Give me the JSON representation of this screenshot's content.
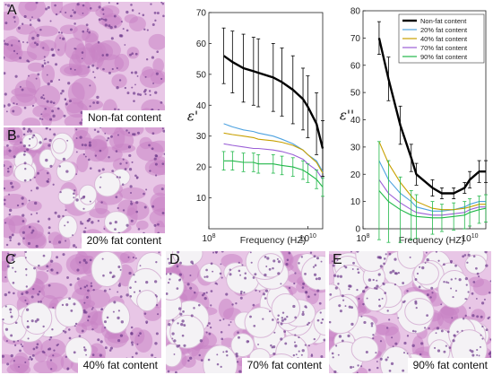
{
  "panels": {
    "A": {
      "letter": "A",
      "caption": "Non-fat content"
    },
    "B": {
      "letter": "B",
      "caption": "20% fat content"
    },
    "C": {
      "letter": "C",
      "caption": "40% fat content"
    },
    "D": {
      "letter": "D",
      "caption": "70% fat content"
    },
    "E": {
      "letter": "E",
      "caption": "90% fat content"
    }
  },
  "colors": {
    "tissue": "#c983c4",
    "tissue_light": "#e8c6e6",
    "fat": "#f4f2f5",
    "nuclei": "#6e3a8c"
  },
  "chart_data": [
    {
      "type": "line",
      "ylabel": "ε'",
      "xlabel": "Frequency (HZ)",
      "xscale": "log",
      "xlim": [
        100000000,
        20000000000
      ],
      "ylim": [
        0,
        70
      ],
      "yticks": [
        10,
        20,
        30,
        40,
        50,
        60,
        70
      ],
      "xticks": [
        {
          "label": "10^8",
          "value": 100000000
        },
        {
          "label": "10^10",
          "value": 10000000000
        }
      ],
      "grid": false,
      "x": [
        200000000,
        300000000,
        500000000,
        800000000,
        1000000000,
        2000000000,
        3000000000,
        5000000000,
        8000000000,
        10000000000,
        15000000000,
        20000000000
      ],
      "series": [
        {
          "name": "Non-fat content",
          "color": "#000000",
          "values": [
            56,
            54,
            52,
            51,
            50.5,
            49,
            47.5,
            45,
            42,
            39.5,
            34,
            26
          ],
          "errors": [
            9,
            10,
            11,
            11,
            11,
            11,
            11,
            11,
            10,
            10,
            10,
            9
          ]
        },
        {
          "name": "20% fat content",
          "color": "#4fa3e0",
          "values": [
            34,
            33,
            32,
            31.5,
            31,
            30,
            29,
            27.5,
            25.5,
            24,
            22,
            18.5
          ]
        },
        {
          "name": "40% fat content",
          "color": "#c8a000",
          "values": [
            31,
            30.5,
            30,
            29.5,
            29,
            28.5,
            28,
            27,
            25.5,
            24,
            21.5,
            18
          ]
        },
        {
          "name": "70% fat content",
          "color": "#9b5fd6",
          "values": [
            27.5,
            27,
            26.5,
            26,
            26,
            25.5,
            25,
            24,
            22.5,
            21,
            19,
            16
          ]
        },
        {
          "name": "90% fat content",
          "color": "#22b84a",
          "values": [
            22,
            22,
            21.5,
            21.5,
            21,
            21,
            20.5,
            20,
            19,
            18,
            16,
            13.5
          ],
          "errors": [
            3,
            3,
            3,
            3,
            3,
            3,
            3,
            3,
            3,
            3,
            3,
            3
          ]
        }
      ]
    },
    {
      "type": "line",
      "ylabel": "ε''",
      "xlabel": "Frequency (HZ)",
      "xscale": "log",
      "xlim": [
        100000000,
        20000000000
      ],
      "ylim": [
        0,
        80
      ],
      "yticks": [
        0,
        10,
        20,
        30,
        40,
        50,
        60,
        70,
        80
      ],
      "xticks": [
        {
          "label": "10^8",
          "value": 100000000
        },
        {
          "label": "10^10",
          "value": 10000000000
        }
      ],
      "grid": false,
      "legend": "top-right",
      "x": [
        200000000,
        300000000,
        500000000,
        800000000,
        1000000000,
        2000000000,
        3000000000,
        5000000000,
        8000000000,
        10000000000,
        15000000000,
        20000000000
      ],
      "series": [
        {
          "name": "Non-fat content",
          "color": "#000000",
          "values": [
            70,
            55,
            38,
            26,
            20,
            15,
            13,
            13,
            15,
            18,
            21,
            21
          ],
          "errors": [
            6,
            8,
            7,
            5,
            4,
            3,
            2,
            2,
            2,
            3,
            4,
            4
          ]
        },
        {
          "name": "20% fat content",
          "color": "#4fa3e0",
          "values": [
            25,
            18,
            13,
            10,
            8,
            6.5,
            6.5,
            7,
            8,
            9,
            10,
            10
          ]
        },
        {
          "name": "40% fat content",
          "color": "#c8a000",
          "values": [
            32,
            24,
            17,
            12,
            10,
            7.5,
            7,
            7,
            7.5,
            8,
            9,
            9
          ]
        },
        {
          "name": "70% fat content",
          "color": "#9b5fd6",
          "values": [
            18,
            13,
            9.5,
            7,
            6,
            5,
            5,
            5.5,
            6,
            7,
            8,
            8
          ]
        },
        {
          "name": "90% fat content",
          "color": "#22b84a",
          "values": [
            14,
            10,
            7,
            5,
            4.5,
            4,
            4,
            4.5,
            5,
            6,
            7,
            7.5
          ],
          "errors": [
            18,
            15,
            12,
            9,
            8,
            6,
            5,
            5,
            5,
            5,
            5,
            5
          ]
        }
      ]
    }
  ]
}
